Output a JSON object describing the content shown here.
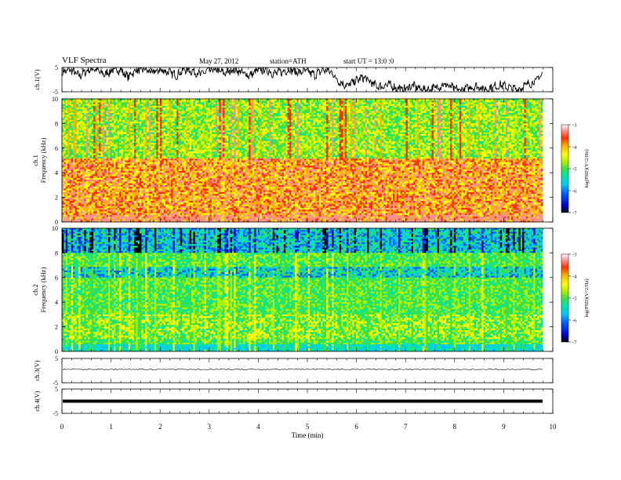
{
  "header": {
    "title": "VLF Spectra",
    "date": "May 27, 2012",
    "station": "station=ATH",
    "start": "start UT = 13:0 :0"
  },
  "chart_data": [
    {
      "type": "line",
      "panel": "ch1-waveform",
      "ylabel": "ch.1(V)",
      "ylim": [
        -5,
        5
      ],
      "yticks": [
        "5",
        "-5"
      ],
      "x_range_min": [
        0,
        9.8
      ],
      "series": [
        {
          "values": [
            3.2,
            4.1,
            1.5,
            3.8,
            4.5,
            2.0,
            3.6,
            4.2,
            1.2,
            3.9,
            4.4,
            2.8,
            4.0,
            3.1,
            1.8,
            4.3,
            3.5,
            2.2,
            4.0,
            3.7,
            2.6,
            4.4,
            3.0,
            1.6,
            3.9,
            4.1,
            2.4,
            3.3,
            4.2,
            2.9,
            3.6,
            1.9,
            4.0,
            3.2,
            -1.0,
            -2.5,
            -0.5,
            1.0,
            -1.5,
            -3.0,
            -2.0,
            -3.5,
            -4.0,
            -2.5,
            -3.8,
            -4.2,
            -3.0,
            -2.0,
            -3.5,
            -4.5,
            -3.2,
            -2.8,
            -4.0,
            -3.0,
            -2.2,
            -3.5,
            -4.1,
            -2.0,
            -1.0,
            2.5
          ]
        }
      ]
    },
    {
      "type": "heatmap",
      "panel": "ch1-spectrogram",
      "ylabel": "ch.1 Frequency (kHz)",
      "ylim": [
        0,
        10
      ],
      "yticks": [
        "0",
        "2",
        "4",
        "6",
        "8",
        "10"
      ],
      "colorbar": {
        "label": "log(PSD)(V^2/Hz)",
        "range": [
          -7,
          -3
        ],
        "ticks": [
          "-3",
          "-4",
          "-5",
          "-6",
          "-7"
        ]
      }
    },
    {
      "type": "heatmap",
      "panel": "ch2-spectrogram",
      "ylabel": "ch.2 Frequency (kHz)",
      "ylim": [
        0,
        10
      ],
      "yticks": [
        "0",
        "2",
        "4",
        "6",
        "8",
        "10"
      ],
      "colorbar": {
        "label": "log(PSD)(V^2/Hz)",
        "range": [
          -7,
          -3
        ],
        "ticks": [
          "-3",
          "-4",
          "-5",
          "-6",
          "-7"
        ]
      }
    },
    {
      "type": "line",
      "panel": "ch3-waveform",
      "ylabel": "ch.3(V)",
      "ylim": [
        -5,
        5
      ],
      "yticks": [
        "5",
        "-5"
      ],
      "series": [
        {
          "values": [
            0.5
          ]
        }
      ]
    },
    {
      "type": "line",
      "panel": "ch4-waveform",
      "ylabel": "ch.4(V)",
      "ylim": [
        -5,
        5
      ],
      "yticks": [
        "5",
        "-5"
      ],
      "series": [
        {
          "values": [
            0
          ]
        }
      ]
    }
  ],
  "xaxis": {
    "label": "Time (min)",
    "xlim": [
      0,
      10
    ],
    "ticks": [
      "0",
      "1",
      "2",
      "3",
      "4",
      "5",
      "6",
      "7",
      "8",
      "9",
      "10"
    ]
  },
  "colors": {
    "colormap": [
      "#000000",
      "#0000d0",
      "#0060ff",
      "#00c8ff",
      "#00e8a0",
      "#40e040",
      "#b0f000",
      "#ffff00",
      "#ffb000",
      "#ff3000",
      "#ff9090",
      "#ffffff"
    ]
  }
}
